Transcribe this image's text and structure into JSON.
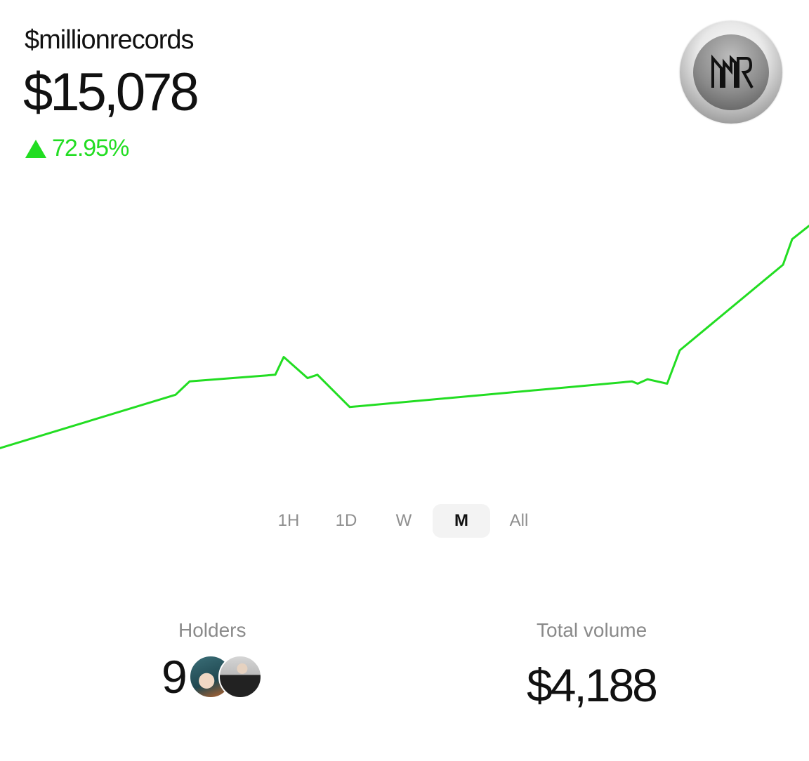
{
  "token": {
    "ticker": "$millionrecords",
    "price": "$15,078",
    "change": "72.95%",
    "change_direction": "up",
    "logo_icon": "mr-monogram-logo",
    "accent_color": "#22dd22"
  },
  "chart_data": {
    "type": "line",
    "series": [
      {
        "values": [
          2.0,
          6.8,
          8.0,
          8.6,
          10.2,
          8.3,
          8.6,
          5.7,
          8.0,
          7.8,
          8.2,
          7.8,
          10.8,
          18.5,
          20.8,
          22.0
        ]
      }
    ],
    "grid": false,
    "legend": "none"
  },
  "time_ranges": {
    "options": [
      "1H",
      "1D",
      "W",
      "M",
      "All"
    ],
    "selected": "M"
  },
  "stats": {
    "holders_label": "Holders",
    "holders_count": "9",
    "volume_label": "Total volume",
    "volume_value": "$4,188"
  }
}
